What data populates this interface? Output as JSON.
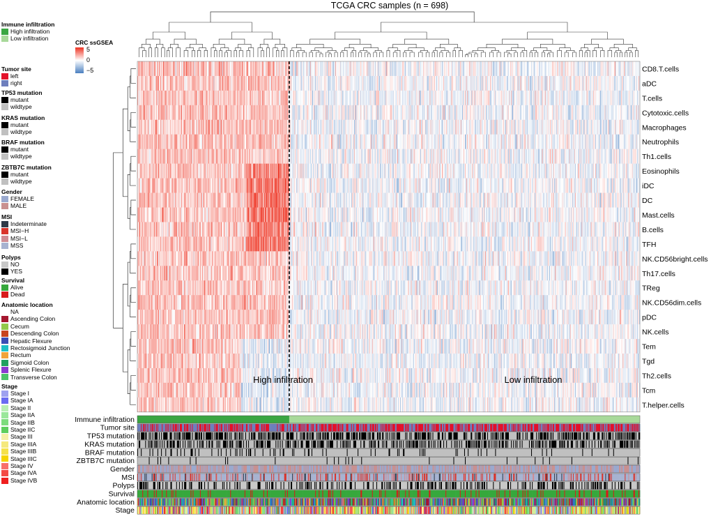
{
  "chart_data": {
    "type": "heatmap",
    "title": "TCGA CRC samples (n = 698)",
    "n_samples": 698,
    "colorbar": {
      "title": "CRC ssGSEA",
      "ticks": [
        5,
        0,
        -5
      ],
      "tick_labels": [
        "5",
        "0",
        "−5"
      ],
      "range": [
        -5,
        5
      ],
      "colors": [
        "#4a7fc0",
        "#ffffff",
        "#ee3322"
      ]
    },
    "rows": [
      "CD8.T.cells",
      "aDC",
      "T.cells",
      "Cytotoxic.cells",
      "Macrophages",
      "Neutrophils",
      "Th1.cells",
      "Eosinophils",
      "iDC",
      "DC",
      "Mast.cells",
      "B.cells",
      "TFH",
      "NK.CD56bright.cells",
      "Th17.cells",
      "TReg",
      "NK.CD56dim.cells",
      "pDC",
      "NK.cells",
      "Tem",
      "Tgd",
      "Th2.cells",
      "Tcm",
      "T.helper.cells"
    ],
    "clusters": [
      {
        "label": "High infiltration",
        "n_approx": 211,
        "mean_score": 1.4
      },
      {
        "label": "Low infiltration",
        "n_approx": 487,
        "mean_score": -0.3
      }
    ],
    "annotation_tracks": [
      "Immune infiltration",
      "Tumor site",
      "TP53 mutation",
      "KRAS mutation",
      "BRAF mutation",
      "ZBTB7C mutation",
      "Gender",
      "MSI",
      "Polyps",
      "Survival",
      "Anatomic location",
      "Stage"
    ]
  },
  "legend": [
    {
      "title": "Immune infiltration",
      "items": [
        {
          "label": "High infiltration",
          "color": "#3aa642"
        },
        {
          "label": "Low infiltration",
          "color": "#a8d99a"
        }
      ]
    },
    {
      "title": "Tumor site",
      "items": [
        {
          "label": "left",
          "color": "#e3112a"
        },
        {
          "label": "right",
          "color": "#6e7fbd"
        }
      ]
    },
    {
      "title": "TP53 mutation",
      "items": [
        {
          "label": "mutant",
          "color": "#000000"
        },
        {
          "label": "wildtype",
          "color": "#c0c0c0"
        }
      ]
    },
    {
      "title": "KRAS mutation",
      "items": [
        {
          "label": "mutant",
          "color": "#000000"
        },
        {
          "label": "wildtype",
          "color": "#c0c0c0"
        }
      ]
    },
    {
      "title": "BRAF mutation",
      "items": [
        {
          "label": "mutant",
          "color": "#000000"
        },
        {
          "label": "wildtype",
          "color": "#c0c0c0"
        }
      ]
    },
    {
      "title": "ZBTB7C mutation",
      "items": [
        {
          "label": "mutant",
          "color": "#000000"
        },
        {
          "label": "wildtype",
          "color": "#c0c0c0"
        }
      ]
    },
    {
      "title": "Gender",
      "items": [
        {
          "label": "FEMALE",
          "color": "#9aa9cf"
        },
        {
          "label": "MALE",
          "color": "#c99090"
        }
      ]
    },
    {
      "title": "MSI",
      "items": [
        {
          "label": "Indeterminate",
          "color": "#2f3a48"
        },
        {
          "label": "MSI−H",
          "color": "#d9342b"
        },
        {
          "label": "MSI−L",
          "color": "#cf8c94"
        },
        {
          "label": "MSS",
          "color": "#a7b3d1"
        }
      ]
    },
    {
      "title": "Polyps",
      "items": [
        {
          "label": "NO",
          "color": "#c8c8c8"
        },
        {
          "label": "YES",
          "color": "#000000"
        }
      ]
    },
    {
      "title": "Survival",
      "items": [
        {
          "label": "Alive",
          "color": "#36a83c"
        },
        {
          "label": "Dead",
          "color": "#d81b1b"
        }
      ]
    },
    {
      "title": "Anatomic location",
      "items": [
        {
          "label": "NA",
          "color": "#ffffff"
        },
        {
          "label": "Ascending Colon",
          "color": "#a5172f"
        },
        {
          "label": "Cecum",
          "color": "#92c94b"
        },
        {
          "label": "Descending Colon",
          "color": "#c8451e"
        },
        {
          "label": "Hepatic Flexure",
          "color": "#3a4db5"
        },
        {
          "label": "Rectosigmoid Junction",
          "color": "#1fc0c6"
        },
        {
          "label": "Rectum",
          "color": "#f0a33a"
        },
        {
          "label": "Sigmoid Colon",
          "color": "#20a060"
        },
        {
          "label": "Splenic Flexure",
          "color": "#8a3ad0"
        },
        {
          "label": "Transverse Colon",
          "color": "#4cc46a"
        }
      ]
    },
    {
      "title": "Stage",
      "items": [
        {
          "label": "Stage I",
          "color": "#9fa2f0"
        },
        {
          "label": "Stage IA",
          "color": "#6a6cf2"
        },
        {
          "label": "Stage II",
          "color": "#b9f0b4"
        },
        {
          "label": "Stage IIA",
          "color": "#9ae79a"
        },
        {
          "label": "Stage IIB",
          "color": "#7ddc7d"
        },
        {
          "label": "Stage IIC",
          "color": "#5ece5e"
        },
        {
          "label": "Stage III",
          "color": "#f5f0a8"
        },
        {
          "label": "Stage IIIA",
          "color": "#f5e97d"
        },
        {
          "label": "Stage IIIB",
          "color": "#f5e14a"
        },
        {
          "label": "Stage IIIC",
          "color": "#f5d400"
        },
        {
          "label": "Stage IV",
          "color": "#f8706a"
        },
        {
          "label": "Stage IVA",
          "color": "#f44a44"
        },
        {
          "label": "Stage IVB",
          "color": "#ef1f1f"
        }
      ]
    }
  ]
}
